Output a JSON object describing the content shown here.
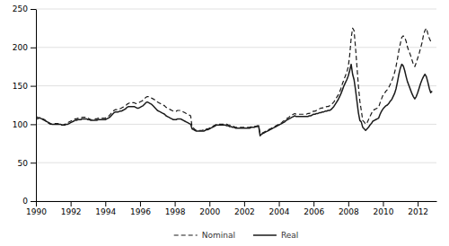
{
  "chart_data": {
    "type": "line",
    "x": [
      1990,
      1990.0833,
      1990.1667,
      1990.25,
      1990.3333,
      1990.4167,
      1990.5,
      1990.5833,
      1990.6667,
      1990.75,
      1990.8333,
      1990.9167,
      1991,
      1991.0833,
      1991.1667,
      1991.25,
      1991.3333,
      1991.4167,
      1991.5,
      1991.5833,
      1991.6667,
      1991.75,
      1991.8333,
      1991.9167,
      1992,
      1992.0833,
      1992.1667,
      1992.25,
      1992.3333,
      1992.4167,
      1992.5,
      1992.5833,
      1992.6667,
      1992.75,
      1992.8333,
      1992.9167,
      1993,
      1993.0833,
      1993.1667,
      1993.25,
      1993.3333,
      1993.4167,
      1993.5,
      1993.5833,
      1993.6667,
      1993.75,
      1993.8333,
      1993.9167,
      1994,
      1994.0833,
      1994.1667,
      1994.25,
      1994.3333,
      1994.4167,
      1994.5,
      1994.5833,
      1994.6667,
      1994.75,
      1994.8333,
      1994.9167,
      1995,
      1995.0833,
      1995.1667,
      1995.25,
      1995.3333,
      1995.4167,
      1995.5,
      1995.5833,
      1995.6667,
      1995.75,
      1995.8333,
      1995.9167,
      1996,
      1996.0833,
      1996.1667,
      1996.25,
      1996.3333,
      1996.4167,
      1996.5,
      1996.5833,
      1996.6667,
      1996.75,
      1996.8333,
      1996.9167,
      1997,
      1997.0833,
      1997.1667,
      1997.25,
      1997.3333,
      1997.4167,
      1997.5,
      1997.5833,
      1997.6667,
      1997.75,
      1997.8333,
      1997.9167,
      1998,
      1998.0833,
      1998.1667,
      1998.25,
      1998.3333,
      1998.4167,
      1998.5,
      1998.5833,
      1998.6667,
      1998.75,
      1998.8333,
      1998.9167,
      1999,
      1999.0833,
      1999.1667,
      1999.25,
      1999.3333,
      1999.4167,
      1999.5,
      1999.5833,
      1999.6667,
      1999.75,
      1999.8333,
      1999.9167,
      2000,
      2000.0833,
      2000.1667,
      2000.25,
      2000.3333,
      2000.4167,
      2000.5,
      2000.5833,
      2000.6667,
      2000.75,
      2000.8333,
      2000.9167,
      2001,
      2001.0833,
      2001.1667,
      2001.25,
      2001.3333,
      2001.4167,
      2001.5,
      2001.5833,
      2001.6667,
      2001.75,
      2001.8333,
      2001.9167,
      2002,
      2002.0833,
      2002.1667,
      2002.25,
      2002.3333,
      2002.4167,
      2002.5,
      2002.5833,
      2002.6667,
      2002.75,
      2002.8333,
      2002.9167,
      2003,
      2003.0833,
      2003.1667,
      2003.25,
      2003.3333,
      2003.4167,
      2003.5,
      2003.5833,
      2003.6667,
      2003.75,
      2003.8333,
      2003.9167,
      2004,
      2004.0833,
      2004.1667,
      2004.25,
      2004.3333,
      2004.4167,
      2004.5,
      2004.5833,
      2004.6667,
      2004.75,
      2004.8333,
      2004.9167,
      2005,
      2005.0833,
      2005.1667,
      2005.25,
      2005.3333,
      2005.4167,
      2005.5,
      2005.5833,
      2005.6667,
      2005.75,
      2005.8333,
      2005.9167,
      2006,
      2006.0833,
      2006.1667,
      2006.25,
      2006.3333,
      2006.4167,
      2006.5,
      2006.5833,
      2006.6667,
      2006.75,
      2006.8333,
      2006.9167,
      2007,
      2007.0833,
      2007.1667,
      2007.25,
      2007.3333,
      2007.4167,
      2007.5,
      2007.5833,
      2007.6667,
      2007.75,
      2007.8333,
      2007.9167,
      2008,
      2008.0833,
      2008.1667,
      2008.25,
      2008.3333,
      2008.4167,
      2008.5,
      2008.5833,
      2008.6667,
      2008.75,
      2008.8333,
      2008.9167,
      2009,
      2009.0833,
      2009.1667,
      2009.25,
      2009.3333,
      2009.4167,
      2009.5,
      2009.5833,
      2009.6667,
      2009.75,
      2009.8333,
      2009.9167,
      2010,
      2010.0833,
      2010.1667,
      2010.25,
      2010.3333,
      2010.4167,
      2010.5,
      2010.5833,
      2010.6667,
      2010.75,
      2010.8333,
      2010.9167,
      2011,
      2011.0833,
      2011.1667,
      2011.25,
      2011.3333,
      2011.4167,
      2011.5,
      2011.5833,
      2011.6667,
      2011.75,
      2011.8333,
      2011.9167,
      2012,
      2012.0833,
      2012.1667,
      2012.25,
      2012.3333,
      2012.4167,
      2012.5,
      2012.5833,
      2012.6667,
      2012.75,
      2012.8333
    ],
    "series": [
      {
        "name": "Nominal",
        "color": "#1a1a1a",
        "line_style": "dashed",
        "values": [
          107,
          107,
          108,
          109,
          108,
          107,
          106,
          104,
          102,
          101,
          100,
          100,
          100,
          101,
          101,
          101,
          100,
          100,
          99,
          99,
          100,
          101,
          102,
          103,
          104,
          105,
          106,
          107,
          107,
          108,
          108,
          108,
          109,
          109,
          109,
          109,
          108,
          107,
          106,
          106,
          106,
          107,
          107,
          108,
          108,
          108,
          108,
          108,
          108,
          109,
          110,
          112,
          114,
          116,
          118,
          119,
          119,
          120,
          120,
          121,
          122,
          123,
          124,
          126,
          127,
          128,
          128,
          128,
          128,
          127,
          127,
          128,
          129,
          130,
          131,
          133,
          135,
          136,
          136,
          135,
          134,
          133,
          132,
          130,
          129,
          128,
          127,
          126,
          125,
          124,
          122,
          121,
          120,
          119,
          118,
          117,
          117,
          117,
          118,
          118,
          118,
          117,
          116,
          115,
          114,
          113,
          112,
          111,
          96,
          95,
          93,
          92,
          92,
          92,
          92,
          92,
          93,
          93,
          94,
          94,
          95,
          96,
          97,
          98,
          99,
          100,
          100,
          100,
          100,
          100,
          100,
          100,
          100,
          99,
          99,
          98,
          97,
          97,
          96,
          96,
          96,
          96,
          96,
          96,
          96,
          96,
          96,
          96,
          96,
          97,
          97,
          97,
          97,
          98,
          98,
          88,
          88,
          89,
          90,
          91,
          92,
          93,
          94,
          95,
          96,
          97,
          98,
          99,
          100,
          101,
          102,
          104,
          105,
          107,
          108,
          109,
          111,
          112,
          113,
          114,
          113,
          113,
          113,
          113,
          113,
          113,
          113,
          113,
          114,
          114,
          115,
          116,
          117,
          117,
          118,
          119,
          120,
          121,
          121,
          122,
          122,
          123,
          123,
          124,
          125,
          127,
          129,
          132,
          135,
          138,
          142,
          147,
          153,
          158,
          163,
          168,
          175,
          190,
          212,
          225,
          222,
          200,
          175,
          150,
          130,
          118,
          105,
          103,
          100,
          102,
          106,
          110,
          114,
          118,
          119,
          120,
          121,
          122,
          128,
          133,
          138,
          140,
          143,
          145,
          148,
          152,
          156,
          161,
          167,
          175,
          185,
          196,
          205,
          213,
          215,
          213,
          208,
          200,
          195,
          190,
          184,
          178,
          175,
          180,
          186,
          192,
          199,
          206,
          216,
          222,
          225,
          218,
          212,
          208,
          210
        ]
      },
      {
        "name": "Real",
        "color": "#1a1a1a",
        "line_style": "solid",
        "values": [
          110,
          109,
          108,
          108,
          107,
          106,
          105,
          104,
          103,
          102,
          101,
          100,
          100,
          100,
          100,
          100,
          100,
          100,
          99,
          99,
          99,
          100,
          100,
          101,
          102,
          103,
          104,
          105,
          105,
          106,
          106,
          106,
          107,
          107,
          107,
          107,
          106,
          106,
          105,
          105,
          105,
          105,
          105,
          106,
          106,
          106,
          106,
          106,
          106,
          107,
          108,
          109,
          111,
          113,
          115,
          116,
          116,
          116,
          117,
          117,
          118,
          119,
          120,
          122,
          123,
          123,
          123,
          123,
          123,
          122,
          121,
          121,
          122,
          123,
          124,
          126,
          128,
          129,
          128,
          127,
          126,
          124,
          122,
          120,
          118,
          117,
          116,
          115,
          114,
          113,
          111,
          110,
          109,
          108,
          107,
          106,
          106,
          106,
          107,
          107,
          107,
          106,
          105,
          104,
          103,
          102,
          101,
          100,
          94,
          93,
          92,
          91,
          91,
          91,
          91,
          91,
          91,
          92,
          93,
          93,
          94,
          95,
          96,
          97,
          98,
          99,
          99,
          99,
          99,
          99,
          99,
          99,
          98,
          98,
          97,
          97,
          96,
          96,
          95,
          95,
          95,
          95,
          95,
          95,
          95,
          95,
          95,
          95,
          95,
          96,
          96,
          96,
          97,
          97,
          98,
          85,
          87,
          88,
          89,
          90,
          91,
          92,
          93,
          94,
          95,
          96,
          97,
          98,
          99,
          100,
          101,
          102,
          103,
          105,
          106,
          107,
          108,
          109,
          110,
          111,
          110,
          110,
          110,
          110,
          110,
          110,
          110,
          110,
          110,
          111,
          111,
          112,
          113,
          113,
          114,
          114,
          115,
          115,
          116,
          116,
          117,
          117,
          118,
          118,
          119,
          121,
          123,
          126,
          129,
          132,
          136,
          140,
          145,
          150,
          154,
          158,
          163,
          170,
          178,
          165,
          158,
          145,
          130,
          115,
          105,
          103,
          96,
          94,
          92,
          94,
          96,
          99,
          101,
          104,
          105,
          106,
          107,
          108,
          113,
          117,
          120,
          122,
          124,
          125,
          127,
          130,
          132,
          136,
          140,
          146,
          155,
          165,
          173,
          178,
          176,
          170,
          162,
          155,
          150,
          145,
          140,
          136,
          133,
          136,
          141,
          147,
          153,
          158,
          162,
          165,
          162,
          155,
          147,
          141,
          143
        ]
      }
    ],
    "xlim": [
      1990,
      2013.08
    ],
    "ylim": [
      0,
      250
    ],
    "xticks": [
      1990,
      1992,
      1994,
      1996,
      1998,
      2000,
      2002,
      2004,
      2006,
      2008,
      2010,
      2012
    ],
    "yticks": [
      0,
      50,
      100,
      150,
      200,
      250
    ],
    "grid": true,
    "legend": "bottom"
  }
}
